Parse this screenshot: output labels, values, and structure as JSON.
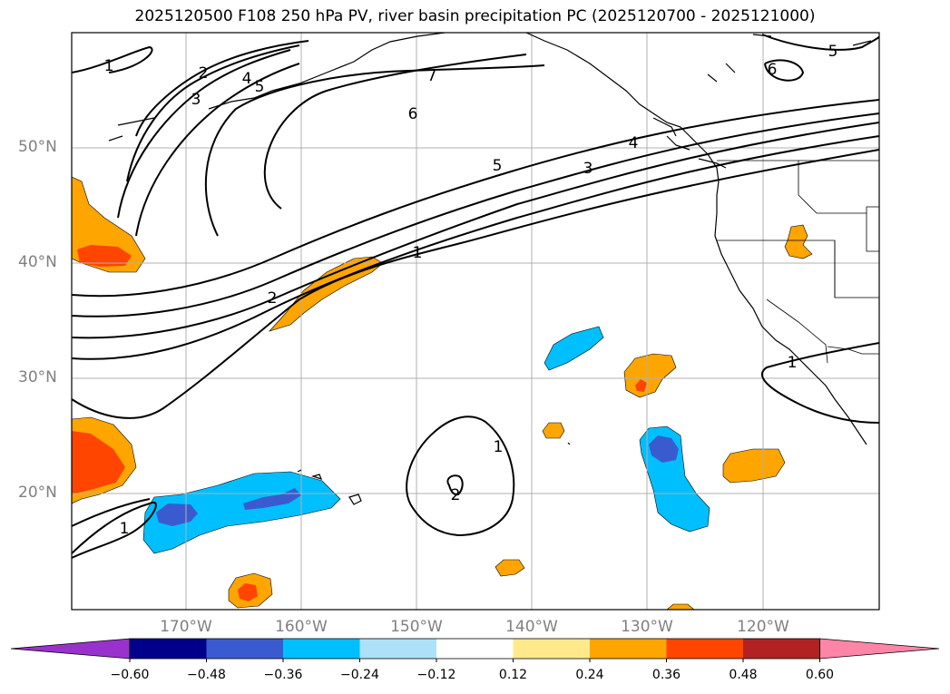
{
  "title": "2025120500 F108 250 hPa PV, river basin precipitation PC (2025120700 - 2025121000)",
  "lat_labels": [
    "50°N",
    "40°N",
    "30°N",
    "20°N"
  ],
  "lon_labels": [
    "170°W",
    "160°W",
    "150°W",
    "140°W",
    "130°W",
    "120°W"
  ],
  "contour_labels": [
    "1",
    "2",
    "3",
    "4",
    "5",
    "6",
    "7",
    "1",
    "2",
    "3",
    "4",
    "5",
    "1",
    "2",
    "1",
    "1",
    "6",
    "5"
  ],
  "colorbar": {
    "ticks": [
      "−0.60",
      "−0.48",
      "−0.36",
      "−0.24",
      "−0.12",
      "0.12",
      "0.24",
      "0.36",
      "0.48",
      "0.60"
    ],
    "colors": [
      "#9932CC",
      "#00008B",
      "#3A5BD0",
      "#00BFFF",
      "#ADE1FA",
      "#FFFFFF",
      "#FFE98A",
      "#FFA500",
      "#FF4500",
      "#B22222",
      "#FF85A8"
    ]
  }
}
